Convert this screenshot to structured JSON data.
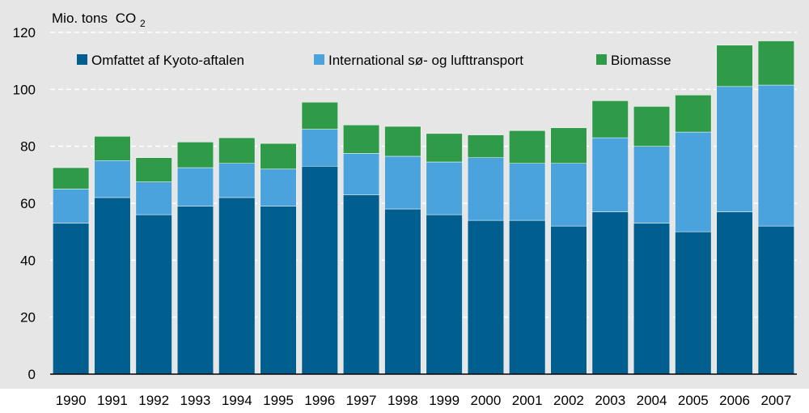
{
  "chart_data": {
    "type": "bar",
    "stacked": true,
    "ylabel": "Mio. tons",
    "ylabel_subscript": "CO",
    "ylabel_subscript_digit": "2",
    "ylim": [
      0,
      120
    ],
    "yticks": [
      0,
      20,
      40,
      60,
      80,
      100,
      120
    ],
    "grid": "horizontal, dashed",
    "legend_placement": "top",
    "categories": [
      "1990",
      "1991",
      "1992",
      "1993",
      "1994",
      "1995",
      "1996",
      "1997",
      "1998",
      "1999",
      "2000",
      "2001",
      "2002",
      "2003",
      "2004",
      "2005",
      "2006",
      "2007"
    ],
    "series": [
      {
        "name": "Omfattet af Kyoto-aftalen",
        "color": "#005f8f",
        "values": [
          53,
          62,
          56,
          59,
          62,
          59,
          73,
          63,
          58,
          56,
          54,
          54,
          52,
          57,
          53,
          50,
          57,
          52
        ]
      },
      {
        "name": "International sø- og lufttransport",
        "color": "#4aa3dc",
        "values": [
          12,
          13,
          11.5,
          13.5,
          12,
          13,
          13,
          14.5,
          18.5,
          18.5,
          22,
          20,
          22,
          26,
          27,
          35,
          44,
          49.5
        ]
      },
      {
        "name": "Biomasse",
        "color": "#2f9a48",
        "values": [
          7.5,
          8.5,
          8.5,
          9,
          9,
          9,
          9.5,
          10,
          10.5,
          10,
          8,
          11.5,
          12.5,
          13,
          14,
          13,
          14.5,
          15.5
        ]
      }
    ]
  },
  "colors": {
    "plot_background": "#e6e6e6",
    "grid": "#ffffff",
    "axis": "#000000"
  }
}
